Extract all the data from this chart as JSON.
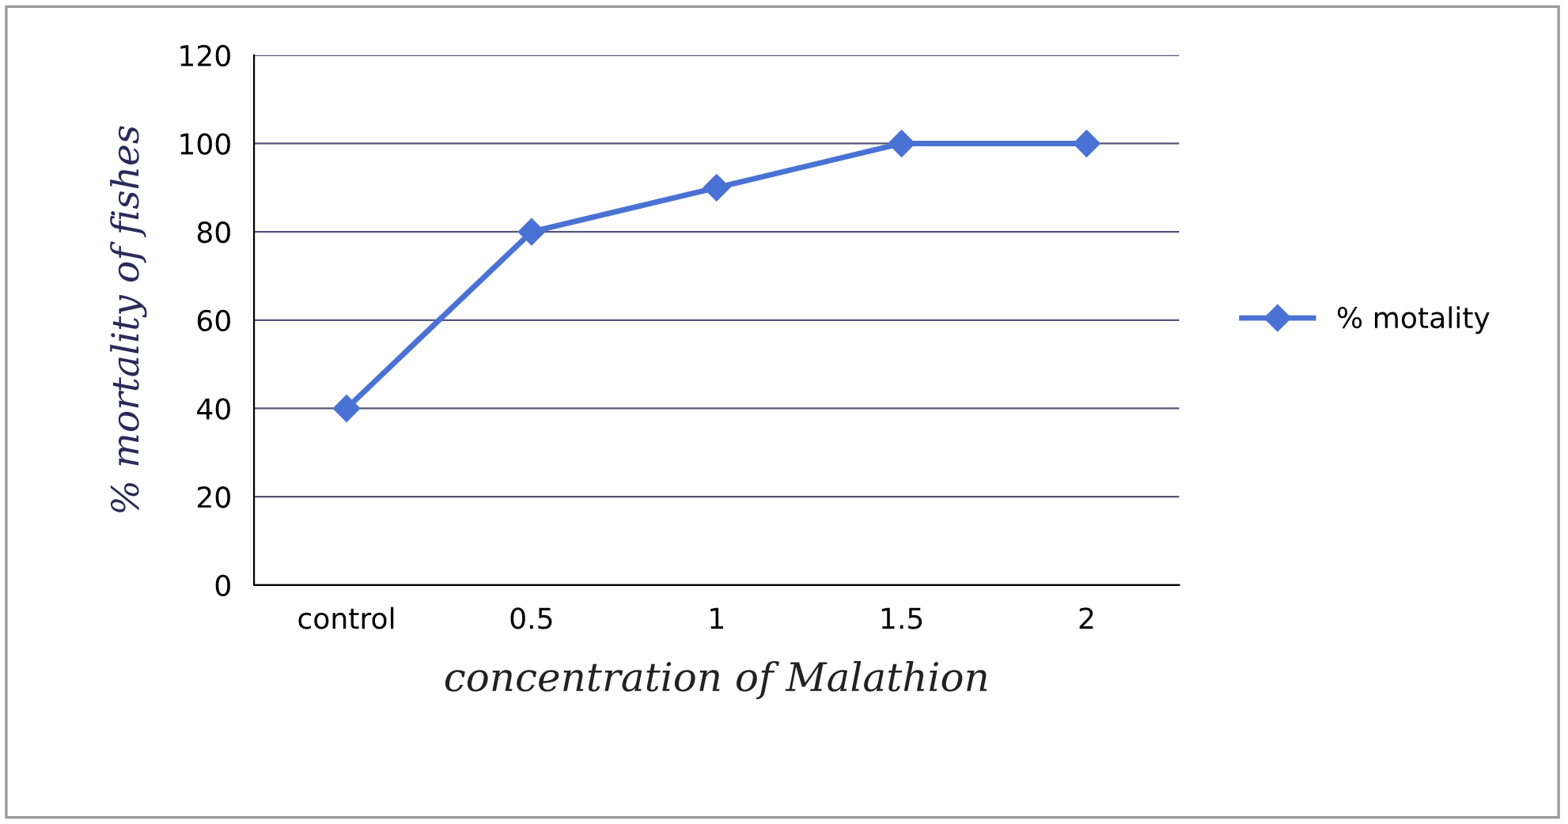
{
  "chart_data": {
    "type": "line",
    "xlabel": "concentration of Malathion",
    "ylabel": "% mortality of fishes",
    "categories": [
      "control",
      "0.5",
      "1",
      "1.5",
      "2"
    ],
    "series": [
      {
        "name": "% motality",
        "color": "#4a72d4",
        "values": [
          40,
          80,
          90,
          100,
          100
        ]
      }
    ],
    "ylim": [
      0,
      120
    ],
    "yticks": [
      0,
      20,
      40,
      60,
      80,
      100,
      120
    ],
    "grid": "y",
    "legend": "right",
    "marker": "diamond",
    "line_style": "solid"
  }
}
